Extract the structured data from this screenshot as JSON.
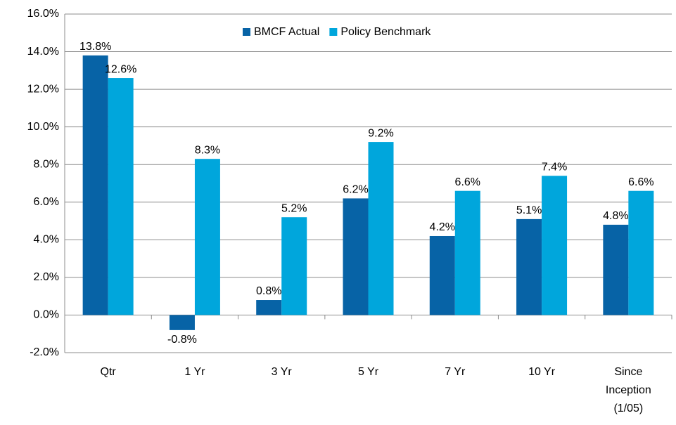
{
  "chart_data": {
    "type": "bar",
    "categories": [
      "Qtr",
      "1 Yr",
      "3 Yr",
      "5 Yr",
      "7 Yr",
      "10 Yr",
      "Since Inception (1/05)"
    ],
    "series": [
      {
        "name": "BMCF Actual",
        "color": "#0763a6",
        "values": [
          13.8,
          -0.8,
          0.8,
          6.2,
          4.2,
          5.1,
          4.8
        ],
        "value_labels": [
          "13.8%",
          "-0.8%",
          "0.8%",
          "6.2%",
          "4.2%",
          "5.1%",
          "4.8%"
        ]
      },
      {
        "name": "Policy Benchmark",
        "color": "#00a6dc",
        "values": [
          12.6,
          8.3,
          5.2,
          9.2,
          6.6,
          7.4,
          6.6
        ],
        "value_labels": [
          "12.6%",
          "8.3%",
          "5.2%",
          "9.2%",
          "6.6%",
          "7.4%",
          "6.6%"
        ]
      }
    ],
    "ylim": [
      -2,
      16
    ],
    "yticks": [
      {
        "value": -2,
        "label": "-2.0%"
      },
      {
        "value": 0,
        "label": "0.0%"
      },
      {
        "value": 2,
        "label": "2.0%"
      },
      {
        "value": 4,
        "label": "4.0%"
      },
      {
        "value": 6,
        "label": "6.0%"
      },
      {
        "value": 8,
        "label": "8.0%"
      },
      {
        "value": 10,
        "label": "10.0%"
      },
      {
        "value": 12,
        "label": "12.0%"
      },
      {
        "value": 14,
        "label": "14.0%"
      },
      {
        "value": 16,
        "label": "16.0%"
      }
    ],
    "grid": true,
    "legend": "top"
  }
}
